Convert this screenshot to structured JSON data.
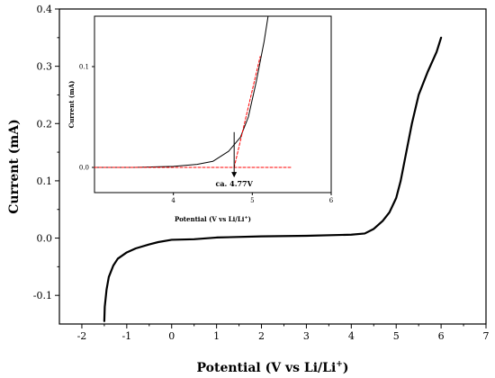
{
  "chart_data": [
    {
      "type": "line",
      "xlabel": "Potential (V vs Li/Li",
      "xlabel_sup": "+",
      "xlabel_end": ")",
      "ylabel": "Current (mA)",
      "xlim": [
        -2.5,
        7
      ],
      "ylim": [
        -0.15,
        0.4
      ],
      "x_ticks": [
        "-2",
        "-1",
        "0",
        "1",
        "2",
        "3",
        "4",
        "5",
        "6",
        "7"
      ],
      "y_ticks": [
        "-0.1",
        "0.0",
        "0.1",
        "0.2",
        "0.3",
        "0.4"
      ],
      "grid": false,
      "series": [
        {
          "color": "#000000",
          "x": [
            -1.5,
            -1.49,
            -1.45,
            -1.4,
            -1.3,
            -1.2,
            -1.0,
            -0.8,
            -0.5,
            -0.3,
            0.0,
            0.5,
            1.0,
            2.0,
            3.0,
            4.0,
            4.3,
            4.5,
            4.7,
            4.85,
            5.0,
            5.1,
            5.2,
            5.35,
            5.5,
            5.7,
            5.9,
            6.0
          ],
          "y": [
            -0.145,
            -0.12,
            -0.09,
            -0.068,
            -0.048,
            -0.036,
            -0.025,
            -0.018,
            -0.011,
            -0.007,
            -0.003,
            -0.002,
            0.001,
            0.003,
            0.004,
            0.006,
            0.008,
            0.016,
            0.03,
            0.045,
            0.07,
            0.1,
            0.14,
            0.2,
            0.25,
            0.29,
            0.325,
            0.35
          ]
        }
      ]
    },
    {
      "type": "line",
      "xlabel": "Potential (V vs Li/Li",
      "xlabel_sup": "+",
      "xlabel_end": ")",
      "ylabel": "Current (mA)",
      "xlim": [
        3.0,
        6.0
      ],
      "ylim": [
        -0.025,
        0.15
      ],
      "x_ticks": [
        "4",
        "5",
        "6"
      ],
      "y_ticks": [
        "0.0",
        "0.1"
      ],
      "annotation": "ca. 4.77V",
      "annotation_x": 4.77,
      "series": [
        {
          "color": "#000000",
          "x": [
            3.0,
            3.5,
            4.0,
            4.3,
            4.5,
            4.7,
            4.85,
            4.95,
            5.05,
            5.15,
            5.2
          ],
          "y": [
            0.0,
            0.0,
            0.001,
            0.003,
            0.006,
            0.016,
            0.03,
            0.05,
            0.085,
            0.125,
            0.15
          ]
        },
        {
          "color": "#ff0000",
          "dash": true,
          "x": [
            3.0,
            5.5
          ],
          "y": [
            0.0,
            0.0
          ]
        },
        {
          "color": "#ff0000",
          "dash": true,
          "x": [
            4.77,
            5.1
          ],
          "y": [
            0.0,
            0.11
          ]
        }
      ]
    }
  ]
}
